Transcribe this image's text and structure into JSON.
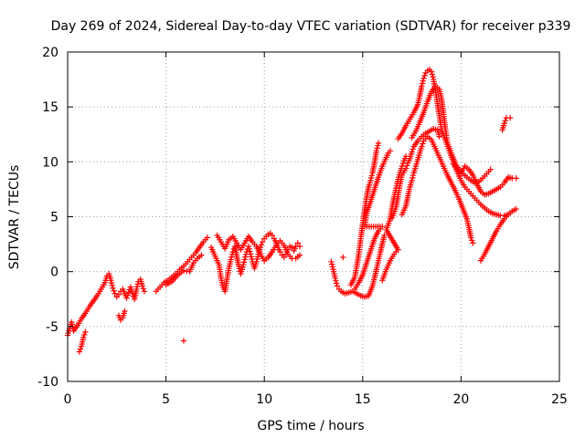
{
  "chart_data": {
    "type": "scatter",
    "title": "Day 269 of 2024, Sidereal Day-to-day VTEC variation (SDTVAR) for receiver p339",
    "xlabel": "GPS time / hours",
    "ylabel": "SDTVAR / TECUs",
    "xlim": [
      0,
      25
    ],
    "ylim": [
      -10,
      20
    ],
    "x_ticks": [
      0,
      5,
      10,
      15,
      20,
      25
    ],
    "y_ticks": [
      -10,
      -5,
      0,
      5,
      10,
      15,
      20
    ],
    "grid": true,
    "marker": "plus",
    "color": "#ff0000",
    "series": [
      {
        "points": [
          [
            0.0,
            -5.8
          ],
          [
            0.1,
            -5.2
          ],
          [
            0.2,
            -4.6
          ],
          [
            0.3,
            -5.4
          ],
          [
            0.5,
            -4.9
          ],
          [
            0.7,
            -4.3
          ],
          [
            0.9,
            -3.8
          ],
          [
            1.1,
            -3.2
          ],
          [
            1.3,
            -2.7
          ],
          [
            1.5,
            -2.2
          ],
          [
            1.7,
            -1.6
          ],
          [
            1.9,
            -1.0
          ],
          [
            2.0,
            -0.4
          ],
          [
            2.1,
            -0.2
          ],
          [
            2.2,
            -0.8
          ],
          [
            2.3,
            -1.5
          ],
          [
            2.4,
            -2.0
          ],
          [
            2.5,
            -2.3
          ],
          [
            2.6,
            -2.1
          ],
          [
            2.7,
            -1.8
          ],
          [
            2.8,
            -1.6
          ],
          [
            2.9,
            -2.0
          ],
          [
            3.0,
            -2.4
          ],
          [
            3.1,
            -1.9
          ],
          [
            3.2,
            -1.4
          ],
          [
            3.3,
            -2.0
          ],
          [
            3.4,
            -2.5
          ],
          [
            3.5,
            -1.6
          ],
          [
            3.6,
            -0.9
          ],
          [
            3.7,
            -0.7
          ],
          [
            3.8,
            -1.3
          ],
          [
            3.9,
            -1.8
          ],
          [
            0.6,
            -7.3
          ],
          [
            0.7,
            -6.8
          ],
          [
            0.8,
            -6.0
          ],
          [
            0.9,
            -5.5
          ],
          [
            2.6,
            -4.0
          ],
          [
            2.7,
            -4.4
          ],
          [
            2.8,
            -4.2
          ],
          [
            2.9,
            -3.6
          ],
          [
            4.5,
            -1.8
          ],
          [
            4.7,
            -1.4
          ],
          [
            4.9,
            -1.0
          ],
          [
            5.1,
            -0.8
          ],
          [
            5.3,
            -0.5
          ],
          [
            5.5,
            -0.2
          ],
          [
            5.7,
            0.2
          ],
          [
            5.9,
            0.5
          ],
          [
            6.1,
            0.9
          ],
          [
            6.3,
            1.3
          ],
          [
            6.5,
            1.7
          ],
          [
            6.7,
            2.2
          ],
          [
            6.9,
            2.7
          ],
          [
            7.1,
            3.1
          ],
          [
            5.0,
            -1.2
          ],
          [
            5.3,
            -0.9
          ],
          [
            5.6,
            -0.3
          ],
          [
            5.9,
            0.1
          ],
          [
            6.2,
            0.0
          ],
          [
            6.4,
            0.8
          ],
          [
            6.6,
            1.2
          ],
          [
            6.8,
            1.5
          ],
          [
            5.9,
            -6.3
          ],
          [
            7.3,
            2.2
          ],
          [
            7.5,
            1.4
          ],
          [
            7.7,
            0.6
          ],
          [
            7.8,
            -0.6
          ],
          [
            7.9,
            -1.4
          ],
          [
            8.0,
            -1.8
          ],
          [
            8.1,
            -0.7
          ],
          [
            8.2,
            0.3
          ],
          [
            8.3,
            1.1
          ],
          [
            8.4,
            1.8
          ],
          [
            8.5,
            2.3
          ],
          [
            8.6,
            1.4
          ],
          [
            8.7,
            0.5
          ],
          [
            8.8,
            -0.2
          ],
          [
            8.9,
            0.4
          ],
          [
            9.0,
            1.1
          ],
          [
            9.1,
            1.8
          ],
          [
            9.2,
            2.3
          ],
          [
            9.3,
            1.6
          ],
          [
            9.4,
            0.9
          ],
          [
            9.5,
            0.3
          ],
          [
            9.6,
            0.9
          ],
          [
            9.7,
            1.6
          ],
          [
            9.8,
            2.2
          ],
          [
            9.9,
            2.7
          ],
          [
            10.0,
            3.0
          ],
          [
            10.1,
            3.2
          ],
          [
            10.2,
            3.4
          ],
          [
            10.3,
            3.5
          ],
          [
            10.4,
            3.3
          ],
          [
            10.5,
            3.0
          ],
          [
            10.6,
            2.6
          ],
          [
            10.7,
            2.2
          ],
          [
            10.8,
            1.8
          ],
          [
            10.9,
            1.5
          ],
          [
            11.0,
            1.3
          ],
          [
            11.1,
            1.6
          ],
          [
            11.2,
            2.0
          ],
          [
            11.3,
            2.3
          ],
          [
            11.4,
            2.2
          ],
          [
            11.5,
            1.9
          ],
          [
            11.6,
            2.3
          ],
          [
            11.7,
            2.6
          ],
          [
            11.8,
            2.3
          ],
          [
            7.6,
            3.3
          ],
          [
            7.8,
            2.7
          ],
          [
            8.0,
            2.1
          ],
          [
            8.2,
            2.9
          ],
          [
            8.4,
            3.2
          ],
          [
            8.6,
            2.6
          ],
          [
            8.8,
            2.0
          ],
          [
            9.0,
            2.6
          ],
          [
            9.2,
            3.2
          ],
          [
            9.4,
            2.7
          ],
          [
            9.6,
            2.3
          ],
          [
            9.8,
            1.6
          ],
          [
            10.0,
            1.0
          ],
          [
            10.2,
            1.3
          ],
          [
            10.4,
            1.8
          ],
          [
            10.6,
            2.4
          ],
          [
            10.8,
            2.8
          ],
          [
            11.0,
            2.4
          ],
          [
            11.2,
            1.6
          ],
          [
            11.4,
            1.2
          ],
          [
            11.6,
            1.2
          ],
          [
            11.8,
            1.5
          ],
          [
            13.4,
            0.9
          ],
          [
            13.5,
            0.2
          ],
          [
            13.6,
            -0.6
          ],
          [
            13.7,
            -1.3
          ],
          [
            13.8,
            -1.6
          ],
          [
            14.0,
            1.3
          ],
          [
            13.9,
            -1.8
          ],
          [
            14.1,
            -2.0
          ],
          [
            14.3,
            -1.9
          ],
          [
            14.5,
            -1.8
          ],
          [
            14.7,
            -2.0
          ],
          [
            14.9,
            -2.2
          ],
          [
            15.1,
            -2.3
          ],
          [
            15.3,
            -2.2
          ],
          [
            15.5,
            -1.3
          ],
          [
            15.7,
            0.2
          ],
          [
            15.9,
            1.8
          ],
          [
            16.1,
            3.3
          ],
          [
            14.4,
            -1.2
          ],
          [
            14.6,
            -0.5
          ],
          [
            14.7,
            0.5
          ],
          [
            14.8,
            1.6
          ],
          [
            14.9,
            3.0
          ],
          [
            15.0,
            4.3
          ],
          [
            15.1,
            5.6
          ],
          [
            15.2,
            6.8
          ],
          [
            15.3,
            7.7
          ],
          [
            15.4,
            8.3
          ],
          [
            15.5,
            9.0
          ],
          [
            15.6,
            9.9
          ],
          [
            15.7,
            11.0
          ],
          [
            15.8,
            11.7
          ],
          [
            14.6,
            -1.6
          ],
          [
            14.8,
            -1.0
          ],
          [
            15.0,
            -0.3
          ],
          [
            15.2,
            0.8
          ],
          [
            15.4,
            1.9
          ],
          [
            15.6,
            3.0
          ],
          [
            15.8,
            3.7
          ],
          [
            16.0,
            4.1
          ],
          [
            15.1,
            4.1
          ],
          [
            15.2,
            5.3
          ],
          [
            15.4,
            6.4
          ],
          [
            15.6,
            7.5
          ],
          [
            15.8,
            8.6
          ],
          [
            16.0,
            9.6
          ],
          [
            16.2,
            10.4
          ],
          [
            16.3,
            10.8
          ],
          [
            16.4,
            11.0
          ],
          [
            16.0,
            -0.8
          ],
          [
            16.2,
            0.2
          ],
          [
            16.4,
            1.0
          ],
          [
            16.6,
            1.6
          ],
          [
            16.8,
            2.0
          ],
          [
            16.2,
            3.8
          ],
          [
            16.4,
            4.8
          ],
          [
            16.5,
            5.9
          ],
          [
            16.6,
            6.8
          ],
          [
            16.7,
            7.6
          ],
          [
            16.8,
            8.4
          ],
          [
            16.9,
            9.0
          ],
          [
            17.0,
            9.6
          ],
          [
            17.1,
            10.1
          ],
          [
            17.2,
            10.5
          ],
          [
            16.5,
            4.9
          ],
          [
            16.7,
            5.9
          ],
          [
            16.8,
            7.0
          ],
          [
            16.9,
            8.0
          ],
          [
            17.0,
            8.8
          ],
          [
            17.2,
            9.4
          ],
          [
            17.3,
            9.9
          ],
          [
            17.4,
            10.3
          ],
          [
            17.5,
            10.9
          ],
          [
            17.6,
            11.4
          ],
          [
            17.8,
            11.9
          ],
          [
            18.0,
            12.3
          ],
          [
            18.2,
            12.6
          ],
          [
            18.4,
            12.8
          ],
          [
            18.6,
            13.0
          ],
          [
            18.8,
            12.9
          ],
          [
            18.9,
            12.3
          ],
          [
            17.0,
            5.2
          ],
          [
            17.2,
            6.0
          ],
          [
            17.3,
            6.9
          ],
          [
            17.4,
            7.7
          ],
          [
            17.5,
            8.3
          ],
          [
            17.6,
            9.0
          ],
          [
            17.7,
            9.6
          ],
          [
            17.8,
            10.2
          ],
          [
            17.9,
            10.8
          ],
          [
            18.0,
            11.4
          ],
          [
            18.1,
            11.9
          ],
          [
            18.3,
            12.3
          ],
          [
            18.5,
            12.0
          ],
          [
            18.7,
            11.2
          ],
          [
            18.9,
            10.4
          ],
          [
            19.1,
            9.6
          ],
          [
            19.3,
            8.8
          ],
          [
            19.5,
            8.1
          ],
          [
            19.7,
            7.4
          ],
          [
            19.9,
            6.6
          ],
          [
            20.1,
            5.7
          ],
          [
            20.3,
            4.8
          ],
          [
            20.4,
            4.0
          ],
          [
            20.5,
            3.1
          ],
          [
            20.6,
            2.6
          ],
          [
            16.8,
            12.1
          ],
          [
            17.0,
            12.6
          ],
          [
            17.2,
            13.3
          ],
          [
            17.4,
            13.9
          ],
          [
            17.6,
            14.5
          ],
          [
            17.8,
            15.2
          ],
          [
            17.9,
            16.0
          ],
          [
            18.0,
            16.9
          ],
          [
            18.1,
            17.6
          ],
          [
            18.2,
            18.1
          ],
          [
            18.3,
            18.3
          ],
          [
            18.4,
            18.4
          ],
          [
            18.5,
            18.2
          ],
          [
            18.6,
            17.5
          ],
          [
            18.7,
            16.5
          ],
          [
            18.8,
            15.3
          ],
          [
            18.9,
            14.2
          ],
          [
            19.0,
            13.0
          ],
          [
            19.2,
            12.0
          ],
          [
            19.4,
            11.0
          ],
          [
            19.6,
            10.0
          ],
          [
            19.8,
            9.1
          ],
          [
            20.0,
            8.3
          ],
          [
            20.2,
            7.7
          ],
          [
            20.4,
            7.3
          ],
          [
            20.6,
            6.9
          ],
          [
            20.8,
            6.5
          ],
          [
            21.0,
            6.1
          ],
          [
            21.2,
            5.8
          ],
          [
            21.4,
            5.5
          ],
          [
            21.6,
            5.3
          ],
          [
            21.8,
            5.2
          ],
          [
            22.0,
            5.1
          ],
          [
            22.2,
            5.1
          ],
          [
            22.4,
            5.2
          ],
          [
            17.5,
            12.2
          ],
          [
            17.7,
            12.8
          ],
          [
            17.9,
            13.6
          ],
          [
            18.1,
            14.5
          ],
          [
            18.3,
            15.5
          ],
          [
            18.5,
            16.4
          ],
          [
            18.7,
            16.9
          ],
          [
            18.9,
            16.6
          ],
          [
            19.0,
            15.8
          ],
          [
            19.1,
            14.5
          ],
          [
            19.2,
            13.0
          ],
          [
            19.3,
            11.8
          ],
          [
            19.5,
            10.8
          ],
          [
            19.7,
            9.9
          ],
          [
            19.9,
            9.3
          ],
          [
            20.1,
            8.9
          ],
          [
            20.3,
            8.6
          ],
          [
            20.5,
            8.3
          ],
          [
            20.7,
            8.1
          ],
          [
            20.9,
            8.2
          ],
          [
            21.1,
            8.5
          ],
          [
            21.3,
            8.9
          ],
          [
            21.5,
            9.3
          ],
          [
            19.6,
            9.8
          ],
          [
            19.8,
            9.4
          ],
          [
            20.0,
            9.0
          ],
          [
            20.2,
            9.6
          ],
          [
            20.4,
            9.3
          ],
          [
            20.6,
            8.8
          ],
          [
            20.8,
            8.0
          ],
          [
            21.0,
            7.3
          ],
          [
            21.2,
            7.0
          ],
          [
            21.4,
            7.1
          ],
          [
            21.6,
            7.3
          ],
          [
            21.8,
            7.5
          ],
          [
            22.0,
            7.7
          ],
          [
            22.2,
            8.1
          ],
          [
            22.4,
            8.6
          ],
          [
            22.6,
            8.5
          ],
          [
            22.8,
            8.5
          ],
          [
            21.0,
            1.0
          ],
          [
            21.2,
            1.6
          ],
          [
            21.4,
            2.3
          ],
          [
            21.6,
            3.0
          ],
          [
            21.8,
            3.7
          ],
          [
            22.0,
            4.3
          ],
          [
            22.2,
            4.8
          ],
          [
            22.4,
            5.2
          ],
          [
            22.6,
            5.5
          ],
          [
            22.8,
            5.7
          ],
          [
            22.1,
            12.9
          ],
          [
            22.2,
            13.5
          ],
          [
            22.3,
            14.0
          ],
          [
            22.5,
            14.0
          ]
        ]
      }
    ]
  }
}
